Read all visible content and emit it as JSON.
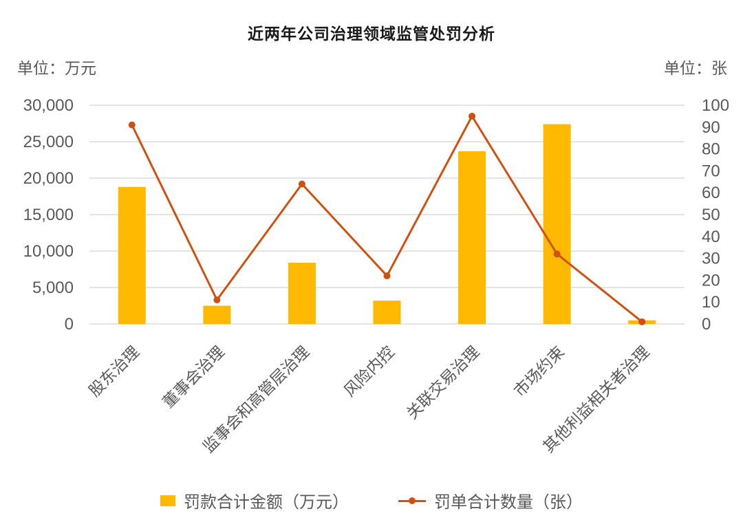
{
  "title": "近两年公司治理领域监管处罚分析",
  "left_axis_unit": "单位：万元",
  "right_axis_unit": "单位：张",
  "legend": {
    "bar_label": "罚款合计金额（万元）",
    "line_label": "罚单合计数量（张）"
  },
  "colors": {
    "bar": "#FFB900",
    "line": "#D2500F",
    "grid": "#E4E4E6",
    "axis_text": "#595959",
    "title_text": "#1A1A1A",
    "background": "#FFFFFF"
  },
  "chart_data": {
    "type": "bar",
    "subtype": "combo-bar-line-dual-axis",
    "title": "近两年公司治理领域监管处罚分析",
    "categories": [
      "股东治理",
      "董事会治理",
      "监事会和高管层治理",
      "风险内控",
      "关联交易治理",
      "市场约束",
      "其他利益相关者治理"
    ],
    "series": [
      {
        "name": "罚款合计金额（万元）",
        "type": "bar",
        "axis": "left",
        "color": "#FFB900",
        "values": [
          18800,
          2500,
          8400,
          3200,
          23700,
          27400,
          500
        ]
      },
      {
        "name": "罚单合计数量（张）",
        "type": "line",
        "axis": "right",
        "color": "#D2500F",
        "marker": "circle",
        "values": [
          91,
          11,
          64,
          22,
          95,
          32,
          1
        ]
      }
    ],
    "left_axis": {
      "label": "单位：万元",
      "min": 0,
      "max": 30000,
      "step": 5000,
      "tick_labels": [
        "0",
        "5,000",
        "10,000",
        "15,000",
        "20,000",
        "25,000",
        "30,000"
      ]
    },
    "right_axis": {
      "label": "单位：张",
      "min": 0,
      "max": 100,
      "step": 10,
      "tick_labels": [
        "0",
        "10",
        "20",
        "30",
        "40",
        "50",
        "60",
        "70",
        "80",
        "90",
        "100"
      ]
    },
    "grid": "horizontal",
    "legend_position": "bottom",
    "category_label_rotation_deg": -45
  }
}
